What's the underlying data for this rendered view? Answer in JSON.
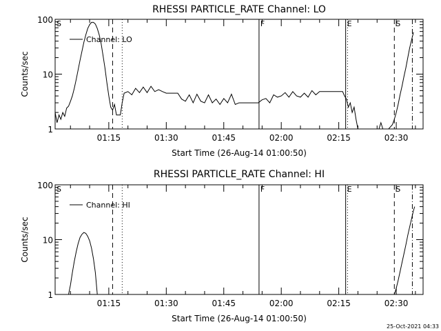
{
  "chart_data": [
    {
      "type": "line",
      "title": "RHESSI PARTICLE_RATE Channel: LO",
      "xlabel": "Start Time (26-Aug-14 01:00:50)",
      "ylabel": "Counts/sec",
      "yscale": "log",
      "ylim": [
        1,
        100
      ],
      "xlim_minutes": [
        1.0,
        97.0
      ],
      "yticks": [
        {
          "v": 1,
          "label": "1"
        },
        {
          "v": 10,
          "label": "10"
        },
        {
          "v": 100,
          "label": "100"
        }
      ],
      "xticks": [
        {
          "label": "01:15",
          "min": 15
        },
        {
          "label": "01:30",
          "min": 30
        },
        {
          "label": "01:45",
          "min": 45
        },
        {
          "label": "02:00",
          "min": 60
        },
        {
          "label": "02:15",
          "min": 75
        },
        {
          "label": "02:30",
          "min": 90
        }
      ],
      "legend": {
        "label": "Channel: LO",
        "position": "top-left"
      },
      "markers": [
        {
          "label": "S",
          "min": 1.0,
          "style": "solid"
        },
        {
          "label": "",
          "min": 16.0,
          "style": "dashed"
        },
        {
          "label": "",
          "min": 18.5,
          "style": "dotted"
        },
        {
          "label": "F",
          "min": 54.2,
          "style": "solid"
        },
        {
          "label": "E",
          "min": 76.8,
          "style": "solid"
        },
        {
          "label": "",
          "min": 77.3,
          "style": "dotted"
        },
        {
          "label": "S",
          "min": 89.5,
          "style": "dashed"
        },
        {
          "label": "",
          "min": 94.2,
          "style": "dashdot"
        }
      ],
      "series": [
        {
          "values": [
            [
              1.0,
              2.0
            ],
            [
              1.5,
              1.3
            ],
            [
              2.0,
              1.8
            ],
            [
              2.5,
              1.5
            ],
            [
              3.0,
              2.0
            ],
            [
              3.5,
              1.7
            ],
            [
              4.0,
              2.4
            ],
            [
              4.5,
              2.6
            ],
            [
              5.0,
              3.2
            ],
            [
              5.5,
              4.0
            ],
            [
              6.0,
              5.5
            ],
            [
              6.5,
              8.0
            ],
            [
              7.0,
              12.0
            ],
            [
              7.5,
              18.0
            ],
            [
              8.0,
              26.0
            ],
            [
              8.5,
              38.0
            ],
            [
              9.0,
              52.0
            ],
            [
              9.5,
              68.0
            ],
            [
              10.0,
              80.0
            ],
            [
              10.5,
              88.0
            ],
            [
              11.0,
              88.0
            ],
            [
              11.5,
              82.0
            ],
            [
              12.0,
              68.0
            ],
            [
              12.5,
              52.0
            ],
            [
              13.0,
              36.0
            ],
            [
              13.5,
              22.0
            ],
            [
              14.0,
              13.0
            ],
            [
              14.5,
              7.0
            ],
            [
              15.0,
              4.0
            ],
            [
              15.5,
              2.5
            ],
            [
              16.0,
              2.2
            ],
            [
              16.5,
              2.8
            ],
            [
              17.0,
              1.8
            ],
            [
              17.5,
              1.8
            ],
            [
              18.0,
              1.8
            ],
            [
              18.5,
              3.0
            ],
            [
              19.0,
              4.5
            ],
            [
              20.0,
              4.8
            ],
            [
              21.0,
              4.2
            ],
            [
              22.0,
              5.5
            ],
            [
              23.0,
              4.6
            ],
            [
              24.0,
              5.8
            ],
            [
              25.0,
              4.6
            ],
            [
              26.0,
              6.0
            ],
            [
              27.0,
              4.8
            ],
            [
              28.0,
              5.2
            ],
            [
              29.0,
              4.8
            ],
            [
              30.0,
              4.5
            ],
            [
              31.0,
              4.5
            ],
            [
              32.0,
              4.5
            ],
            [
              33.0,
              4.5
            ],
            [
              34.0,
              3.5
            ],
            [
              35.0,
              3.2
            ],
            [
              36.0,
              4.2
            ],
            [
              37.0,
              3.0
            ],
            [
              38.0,
              4.3
            ],
            [
              39.0,
              3.2
            ],
            [
              40.0,
              3.0
            ],
            [
              41.0,
              4.2
            ],
            [
              42.0,
              3.0
            ],
            [
              43.0,
              3.5
            ],
            [
              44.0,
              2.8
            ],
            [
              45.0,
              3.6
            ],
            [
              46.0,
              3.0
            ],
            [
              47.0,
              4.3
            ],
            [
              48.0,
              2.8
            ],
            [
              49.0,
              3.0
            ],
            [
              50.0,
              3.0
            ],
            [
              51.0,
              3.0
            ],
            [
              52.0,
              3.0
            ],
            [
              53.0,
              3.0
            ],
            [
              54.0,
              3.0
            ],
            [
              55.0,
              3.4
            ],
            [
              56.0,
              3.6
            ],
            [
              57.0,
              3.0
            ],
            [
              58.0,
              4.2
            ],
            [
              59.0,
              3.8
            ],
            [
              60.0,
              4.0
            ],
            [
              61.0,
              4.6
            ],
            [
              62.0,
              3.8
            ],
            [
              63.0,
              4.8
            ],
            [
              64.0,
              4.0
            ],
            [
              65.0,
              3.8
            ],
            [
              66.0,
              4.5
            ],
            [
              67.0,
              3.8
            ],
            [
              68.0,
              5.0
            ],
            [
              69.0,
              4.2
            ],
            [
              70.0,
              4.8
            ],
            [
              71.0,
              4.8
            ],
            [
              72.0,
              4.8
            ],
            [
              73.0,
              4.8
            ],
            [
              74.0,
              4.8
            ],
            [
              75.0,
              4.8
            ],
            [
              76.0,
              4.8
            ],
            [
              76.5,
              4.0
            ],
            [
              77.0,
              3.5
            ],
            [
              77.5,
              2.5
            ],
            [
              78.0,
              3.0
            ],
            [
              78.5,
              2.0
            ],
            [
              79.0,
              2.5
            ],
            [
              79.5,
              1.5
            ],
            [
              80.0,
              1.0
            ]
          ]
        },
        {
          "values": [
            [
              84.5,
              1.0
            ],
            [
              85.5,
              1.0
            ],
            [
              86.0,
              1.3
            ],
            [
              86.5,
              1.0
            ],
            [
              87.0,
              1.0
            ],
            [
              88.0,
              1.0
            ],
            [
              89.0,
              1.2
            ],
            [
              89.5,
              1.5
            ],
            [
              90.0,
              2.0
            ],
            [
              90.5,
              2.8
            ],
            [
              91.0,
              4.2
            ],
            [
              91.5,
              6.0
            ],
            [
              92.0,
              9.0
            ],
            [
              92.5,
              13.0
            ],
            [
              93.0,
              20.0
            ],
            [
              93.5,
              30.0
            ],
            [
              94.0,
              42.0
            ],
            [
              94.5,
              58.0
            ]
          ]
        }
      ]
    },
    {
      "type": "line",
      "title": "RHESSI PARTICLE_RATE Channel: HI",
      "xlabel": "Start Time (26-Aug-14 01:00:50)",
      "ylabel": "Counts/sec",
      "yscale": "log",
      "ylim": [
        1,
        100
      ],
      "xlim_minutes": [
        1.0,
        97.0
      ],
      "yticks": [
        {
          "v": 1,
          "label": "1"
        },
        {
          "v": 10,
          "label": "10"
        },
        {
          "v": 100,
          "label": "100"
        }
      ],
      "xticks": [
        {
          "label": "01:15",
          "min": 15
        },
        {
          "label": "01:30",
          "min": 30
        },
        {
          "label": "01:45",
          "min": 45
        },
        {
          "label": "02:00",
          "min": 60
        },
        {
          "label": "02:15",
          "min": 75
        },
        {
          "label": "02:30",
          "min": 90
        }
      ],
      "legend": {
        "label": "Channel: HI",
        "position": "top-left"
      },
      "markers": [
        {
          "label": "S",
          "min": 1.0,
          "style": "solid"
        },
        {
          "label": "",
          "min": 16.0,
          "style": "dashed"
        },
        {
          "label": "",
          "min": 18.5,
          "style": "dotted"
        },
        {
          "label": "F",
          "min": 54.2,
          "style": "solid"
        },
        {
          "label": "E",
          "min": 76.8,
          "style": "solid"
        },
        {
          "label": "",
          "min": 77.3,
          "style": "dotted"
        },
        {
          "label": "S",
          "min": 89.5,
          "style": "dashed"
        },
        {
          "label": "",
          "min": 94.2,
          "style": "dashdot"
        }
      ],
      "series": [
        {
          "values": [
            [
              4.5,
              1.0
            ],
            [
              5.0,
              1.5
            ],
            [
              5.5,
              2.5
            ],
            [
              6.0,
              4.0
            ],
            [
              6.5,
              6.0
            ],
            [
              7.0,
              8.5
            ],
            [
              7.5,
              11.0
            ],
            [
              8.0,
              12.5
            ],
            [
              8.5,
              13.5
            ],
            [
              9.0,
              13.0
            ],
            [
              9.5,
              11.5
            ],
            [
              10.0,
              9.5
            ],
            [
              10.5,
              7.0
            ],
            [
              11.0,
              4.5
            ],
            [
              11.5,
              2.5
            ],
            [
              12.0,
              1.0
            ]
          ]
        },
        {
          "values": [
            [
              89.5,
              1.0
            ],
            [
              90.0,
              1.3
            ],
            [
              90.5,
              1.8
            ],
            [
              91.0,
              2.6
            ],
            [
              91.5,
              3.8
            ],
            [
              92.0,
              5.5
            ],
            [
              92.5,
              8.0
            ],
            [
              93.0,
              12.0
            ],
            [
              93.5,
              17.0
            ],
            [
              94.0,
              24.0
            ],
            [
              94.5,
              34.0
            ],
            [
              94.8,
              40.0
            ]
          ]
        }
      ]
    }
  ],
  "footer": {
    "timestamp": "25-Oct-2021 04:33"
  }
}
